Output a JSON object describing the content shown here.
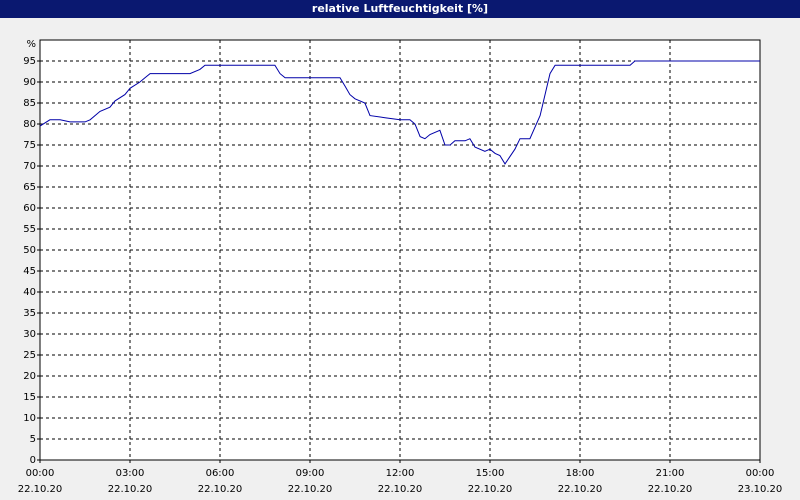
{
  "chart_data": {
    "type": "line",
    "title": "relative Luftfeuchtigkeit [%]",
    "y_unit": "%",
    "x": [
      0,
      0.33,
      0.67,
      1,
      1.5,
      1.67,
      2,
      2.33,
      2.5,
      2.83,
      3,
      3.33,
      3.5,
      3.67,
      4,
      5,
      5.33,
      5.5,
      6,
      7,
      7.83,
      8,
      8.17,
      9,
      10,
      10.17,
      10.33,
      10.5,
      10.83,
      11,
      11.5,
      12,
      12.33,
      12.5,
      12.67,
      12.83,
      13,
      13.33,
      13.5,
      13.67,
      13.83,
      14.17,
      14.33,
      14.5,
      14.83,
      15,
      15.17,
      15.33,
      15.5,
      15.83,
      16,
      16.33,
      16.67,
      17,
      17.17,
      18,
      19,
      19.67,
      19.83,
      21,
      24
    ],
    "series": [
      {
        "name": "relative Luftfeuchtigkeit",
        "color": "#0000a8",
        "values": [
          79.5,
          81,
          81,
          80.5,
          80.5,
          81,
          83,
          84,
          85.5,
          87,
          88.5,
          90,
          91,
          92,
          92,
          92,
          93,
          94,
          94,
          94,
          94,
          92,
          91,
          91,
          91,
          89,
          87,
          86,
          85,
          82,
          81.5,
          81,
          81,
          80,
          77,
          76.5,
          77.5,
          78.5,
          75,
          75,
          76,
          76,
          76.5,
          74.5,
          73.5,
          74,
          73,
          72.5,
          70.5,
          74,
          76.5,
          76.5,
          82,
          92,
          94,
          94,
          94,
          94,
          95,
          95,
          95
        ]
      }
    ],
    "xlim": [
      0,
      24
    ],
    "xticks": [
      {
        "value": 0,
        "label": "00:00"
      },
      {
        "value": 3,
        "label": "03:00"
      },
      {
        "value": 6,
        "label": "06:00"
      },
      {
        "value": 9,
        "label": "09:00"
      },
      {
        "value": 12,
        "label": "12:00"
      },
      {
        "value": 15,
        "label": "15:00"
      },
      {
        "value": 18,
        "label": "18:00"
      },
      {
        "value": 21,
        "label": "21:00"
      },
      {
        "value": 24,
        "label": "00:00"
      }
    ],
    "xtick_dates": [
      "22.10.20",
      "22.10.20",
      "22.10.20",
      "22.10.20",
      "22.10.20",
      "22.10.20",
      "22.10.20",
      "22.10.20",
      "23.10.20"
    ],
    "ylim": [
      0,
      100
    ],
    "yticks": [
      0,
      5,
      10,
      15,
      20,
      25,
      30,
      35,
      40,
      45,
      50,
      55,
      60,
      65,
      70,
      75,
      80,
      85,
      90,
      95
    ],
    "grid": true
  }
}
